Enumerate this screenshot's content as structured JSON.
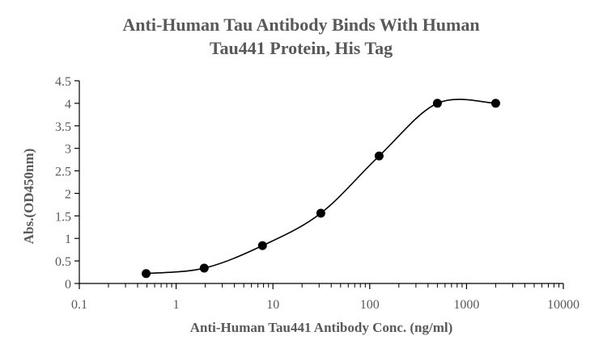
{
  "chart_data": {
    "type": "scatter",
    "title_lines": [
      "Anti-Human Tau Antibody Binds With Human",
      "Tau441 Protein, His Tag"
    ],
    "xlabel": "Anti-Human Tau441 Antibody Conc. (ng/ml)",
    "ylabel": "Abs.(OD450nm)",
    "x_scale": "log",
    "xlim": [
      0.1,
      10000
    ],
    "ylim": [
      0,
      4.5
    ],
    "x_ticks": [
      0.1,
      1,
      10,
      100,
      1000,
      10000
    ],
    "x_tick_labels": [
      "0.1",
      "1",
      "10",
      "100",
      "1000",
      "10000"
    ],
    "y_ticks": [
      0,
      0.5,
      1,
      1.5,
      2,
      2.5,
      3,
      3.5,
      4,
      4.5
    ],
    "y_tick_labels": [
      "0",
      "0.5",
      "1",
      "1.5",
      "2",
      "2.5",
      "3",
      "3.5",
      "4",
      "4.5"
    ],
    "grid": false,
    "legend": "none",
    "smoothed_line": true,
    "series": [
      {
        "x": [
          0.49,
          1.95,
          7.8,
          31.25,
          125,
          500,
          2000
        ],
        "y": [
          0.22,
          0.34,
          0.84,
          1.56,
          2.83,
          4.0,
          4.0
        ]
      }
    ],
    "colors": {
      "marker": "#000000",
      "line": "#000000",
      "axis": "#000000",
      "text": "#595959"
    }
  }
}
